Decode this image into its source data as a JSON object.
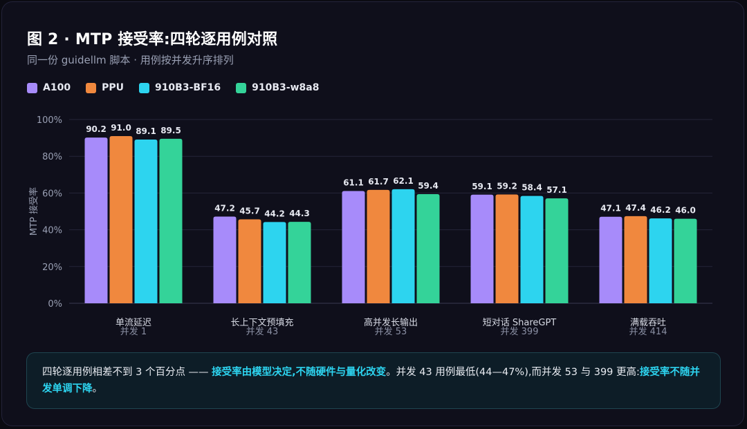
{
  "header": {
    "title": "图 2 · MTP 接受率:四轮逐用例对照",
    "subtitle": "同一份 guidellm 脚本 · 用例按并发升序排列"
  },
  "colors": {
    "A100": "#a78bfa",
    "PPU": "#f0883e",
    "910B3-BF16": "#2dd4ef",
    "910B3-w8a8": "#34d399",
    "accent": "#2dd4f0"
  },
  "chart_data": {
    "type": "bar",
    "title": "图 2 · MTP 接受率:四轮逐用例对照",
    "subtitle": "同一份 guidellm 脚本 · 用例按并发升序排列",
    "ylabel": "MTP 接受率",
    "ylim": [
      0,
      100
    ],
    "yticks": [
      "0%",
      "20%",
      "40%",
      "60%",
      "80%",
      "100%"
    ],
    "grid": true,
    "legend_position": "top-left",
    "categories": [
      "单流延迟",
      "长上下文预填充",
      "高并发长输出",
      "短对话 ShareGPT",
      "满载吞吐"
    ],
    "category_sublabels": [
      "并发 1",
      "并发 43",
      "并发 53",
      "并发 399",
      "并发 414"
    ],
    "series": [
      {
        "name": "A100",
        "values": [
          90.2,
          47.2,
          61.1,
          59.1,
          47.1
        ]
      },
      {
        "name": "PPU",
        "values": [
          91.0,
          45.7,
          61.7,
          59.2,
          47.4
        ]
      },
      {
        "name": "910B3-BF16",
        "values": [
          89.1,
          44.2,
          62.1,
          58.4,
          46.2
        ]
      },
      {
        "name": "910B3-w8a8",
        "values": [
          89.5,
          44.3,
          59.4,
          57.1,
          46.0
        ]
      }
    ]
  },
  "note": {
    "segments": [
      {
        "text": "四轮逐用例相差不到 3 个百分点 —— ",
        "highlight": false
      },
      {
        "text": "接受率由模型决定,不随硬件与量化改变",
        "highlight": true
      },
      {
        "text": "。并发 43 用例最低(44—47%),而并发 53 与 399 更高:",
        "highlight": false
      },
      {
        "text": "接受率不随并发单调下降",
        "highlight": true
      },
      {
        "text": "。",
        "highlight": false
      }
    ]
  }
}
